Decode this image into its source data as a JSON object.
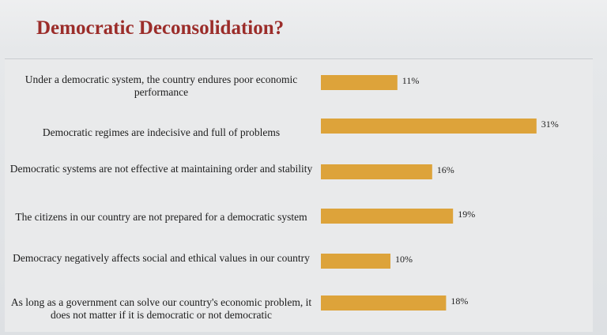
{
  "title": "Democratic Deconsolidation?",
  "colors": {
    "bar": "#dda33a",
    "title": "#9b2d2a"
  },
  "chart_data": {
    "type": "bar",
    "orientation": "horizontal",
    "categories": [
      "Under a democratic system, the country endures poor economic performance",
      "Democratic regimes are indecisive and full of problems",
      "Democratic systems are not effective at maintaining order and stability",
      "The citizens in our country are not prepared for a democratic system",
      "Democracy negatively affects social and ethical values in our country",
      "As long as a government can solve our country's economic problem, it does not matter if it is democratic or not democratic"
    ],
    "values": [
      11,
      31,
      16,
      19,
      10,
      18
    ],
    "value_labels": [
      "11%",
      "31%",
      "16%",
      "19%",
      "10%",
      "18%"
    ],
    "xlim": [
      0,
      31
    ],
    "grid": false,
    "legend": "none"
  }
}
